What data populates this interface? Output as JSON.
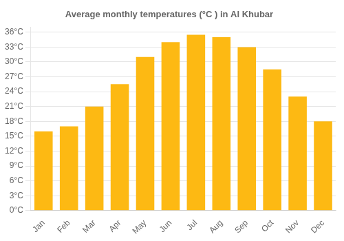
{
  "chart_data": {
    "type": "bar",
    "title": "Average monthly temperatures (°C ) in Al Khubar",
    "categories": [
      "Jan",
      "Feb",
      "Mar",
      "Apr",
      "May",
      "Jun",
      "Jul",
      "Aug",
      "Sep",
      "Oct",
      "Nov",
      "Dec"
    ],
    "values": [
      16,
      17,
      21,
      25.5,
      31,
      34,
      35.5,
      35,
      33,
      28.5,
      23,
      18
    ],
    "color": "#FDB913",
    "ylim": [
      0,
      37
    ],
    "yticks": [
      {
        "value": 0,
        "label": "0°C"
      },
      {
        "value": 3,
        "label": "3°C"
      },
      {
        "value": 6,
        "label": "6°C"
      },
      {
        "value": 9,
        "label": "9°C"
      },
      {
        "value": 12,
        "label": "12°C"
      },
      {
        "value": 15,
        "label": "15°C"
      },
      {
        "value": 18,
        "label": "18°C"
      },
      {
        "value": 21,
        "label": "21°C"
      },
      {
        "value": 24,
        "label": "24°C"
      },
      {
        "value": 27,
        "label": "27°C"
      },
      {
        "value": 30,
        "label": "30°C"
      },
      {
        "value": 33,
        "label": "33°C"
      },
      {
        "value": 36,
        "label": "36°C"
      }
    ],
    "grid": true
  }
}
